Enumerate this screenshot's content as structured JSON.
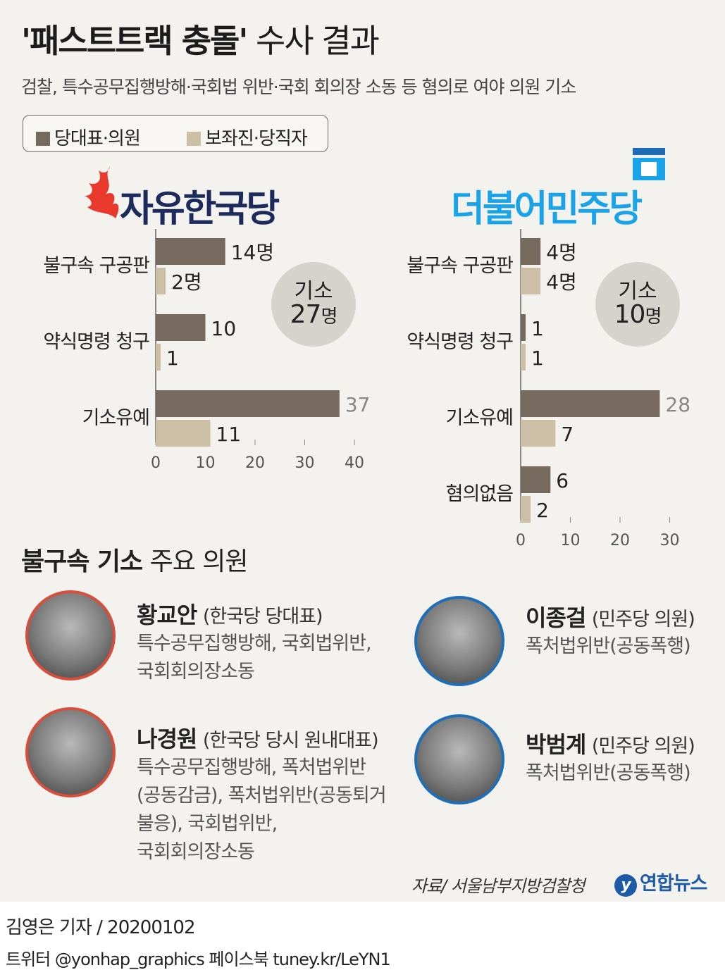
{
  "header": {
    "title_bold": "'패스트트랙 충돌'",
    "title_rest": " 수사 결과",
    "subtitle": "검찰, 특수공무집행방해·국회법 위반·국회 회의장 소동 등 혐의로 여야 의원 기소"
  },
  "legend": {
    "items": [
      {
        "label": "당대표·의원",
        "color": "#76695d"
      },
      {
        "label": "보좌진·당직자",
        "color": "#cdbfa6"
      }
    ]
  },
  "chart_data": [
    {
      "type": "bar",
      "orientation": "horizontal",
      "party": "자유한국당",
      "categories": [
        "불구속 구공판",
        "약식명령 청구",
        "기소유예"
      ],
      "series": [
        {
          "name": "당대표·의원",
          "values": [
            14,
            10,
            37
          ],
          "labels": [
            "14명",
            "10",
            "37"
          ]
        },
        {
          "name": "보좌진·당직자",
          "values": [
            2,
            1,
            11
          ],
          "labels": [
            "2명",
            "1",
            "11"
          ]
        }
      ],
      "xlim": [
        0,
        40
      ],
      "xticks": [
        "0",
        "10",
        "20",
        "30",
        "40"
      ],
      "badge": {
        "line1": "기소",
        "num": "27",
        "unit": "명"
      }
    },
    {
      "type": "bar",
      "orientation": "horizontal",
      "party": "더불어민주당",
      "categories": [
        "불구속 구공판",
        "약식명령 청구",
        "기소유예",
        "혐의없음"
      ],
      "series": [
        {
          "name": "당대표·의원",
          "values": [
            4,
            1,
            28,
            6
          ],
          "labels": [
            "4명",
            "1",
            "28",
            "6"
          ]
        },
        {
          "name": "보좌진·당직자",
          "values": [
            4,
            1,
            7,
            2
          ],
          "labels": [
            "4명",
            "1",
            "7",
            "2"
          ]
        }
      ],
      "xlim": [
        0,
        30
      ],
      "xticks": [
        "0",
        "10",
        "20",
        "30"
      ],
      "badge": {
        "line1": "기소",
        "num": "10",
        "unit": "명"
      }
    }
  ],
  "colors": {
    "members": "#76695d",
    "staff": "#cdbfa6",
    "lkp": "#1d2a5c",
    "lkp_flame": "#e8392c",
    "dp": "#1aa3e8",
    "axis": "#999999"
  },
  "section": {
    "title_bold": "불구속 기소",
    "title_rest": " 주요 의원"
  },
  "people": [
    {
      "name": "황교안",
      "role": "(한국당 당대표)",
      "desc": [
        "특수공무집행방해, 국회법위반,",
        "국회회의장소동"
      ],
      "ring": "red"
    },
    {
      "name": "나경원",
      "role": "(한국당 당시 원내대표)",
      "desc": [
        "특수공무집행방해, 폭처법위반",
        "(공동감금), 폭처법위반(공동퇴거",
        "불응), 국회법위반,",
        "국회회의장소동"
      ],
      "ring": "red"
    },
    {
      "name": "이종걸",
      "role": "(민주당 의원)",
      "desc": [
        "폭처법위반(공동폭행)"
      ],
      "ring": "blue"
    },
    {
      "name": "박범계",
      "role": "(민주당 의원)",
      "desc": [
        "폭처법위반(공동폭행)"
      ],
      "ring": "blue"
    }
  ],
  "footer": {
    "source": "자료/ 서울남부지방검찰청",
    "agency": "연합뉴스",
    "agency_mark": "y",
    "credit": "김영은 기자 / 20200102",
    "social": "트위터 @yonhap_graphics  페이스북 tuney.kr/LeYN1"
  }
}
